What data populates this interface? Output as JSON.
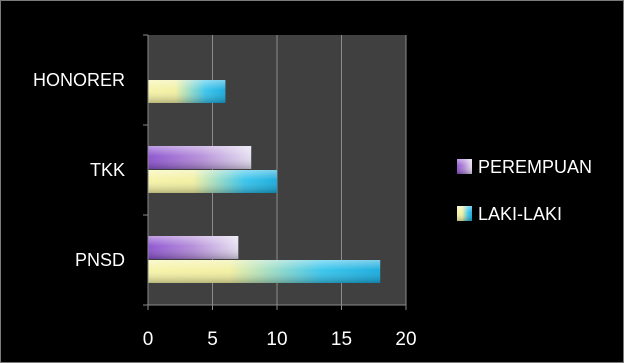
{
  "chart_data": {
    "type": "bar",
    "orientation": "horizontal",
    "categories": [
      "HONORER",
      "TKK",
      "PNSD"
    ],
    "series": [
      {
        "name": "PEREMPUAN",
        "values": [
          null,
          8,
          7
        ],
        "color": "#9b59d6"
      },
      {
        "name": "LAKI-LAKI",
        "values": [
          6,
          10,
          18
        ],
        "color": "#1fb8e8"
      }
    ],
    "xlim": [
      0,
      20
    ],
    "x_ticks": [
      "0",
      "5",
      "10",
      "15",
      "20"
    ],
    "grid": "vertical",
    "legend": "right",
    "plot_background": "#404040",
    "text_color": "#ffffff"
  }
}
